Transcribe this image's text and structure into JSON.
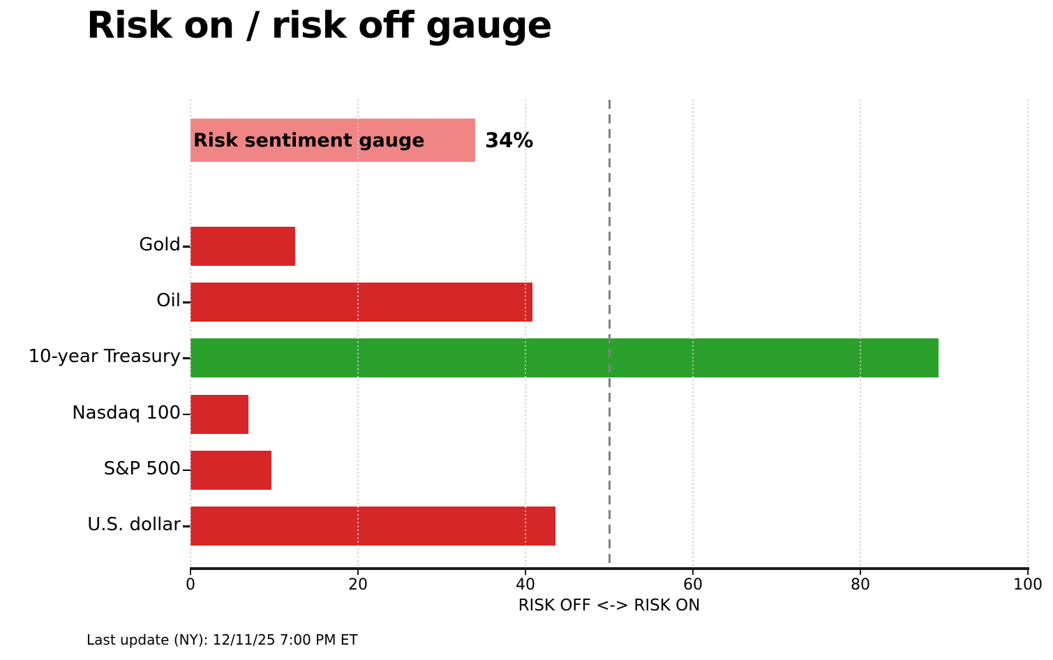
{
  "title": "Risk on / risk off gauge",
  "footer": "Last update (NY): 12/11/25 7:00 PM ET",
  "colors": {
    "risk_off_red": "#d62728",
    "risk_on_green": "#2ca02c",
    "gauge_pink": "#f08585",
    "threshold_gray": "#808080",
    "gridline_gray": "#cbcbcb",
    "axis_black": "#1a1a1a"
  },
  "chart_data": {
    "type": "bar",
    "orientation": "horizontal",
    "title": "Risk on / risk off gauge",
    "xlabel": "RISK OFF <-> RISK ON",
    "xlim": [
      0,
      100
    ],
    "xticks": [
      0,
      20,
      40,
      60,
      80,
      100
    ],
    "grid": "dotted vertical at each xtick",
    "threshold_value": 50,
    "gauge": {
      "label": "Risk sentiment gauge",
      "value": 34,
      "value_label": "34%",
      "color": "#f08585"
    },
    "categories": [
      "Gold",
      "Oil",
      "10-year Treasury",
      "Nasdaq 100",
      "S&P 500",
      "U.S. dollar"
    ],
    "values": [
      12.5,
      40.8,
      89.3,
      6.9,
      9.7,
      43.6
    ],
    "bar_colors": [
      "#d62728",
      "#d62728",
      "#2ca02c",
      "#d62728",
      "#d62728",
      "#d62728"
    ],
    "legend": "none"
  }
}
